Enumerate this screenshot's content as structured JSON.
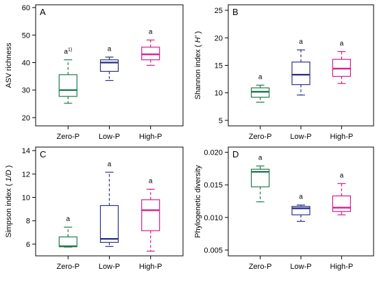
{
  "colors": {
    "Zero-P": "#1f7a4d",
    "Low-P": "#2b2f86",
    "High-P": "#d51b8a"
  },
  "chart_data": [
    {
      "type": "box",
      "panel_label": "A",
      "ylabel": "ASV richness",
      "ylabel_parts": [
        {
          "text": "ASV richness",
          "italic": false
        }
      ],
      "categories": [
        "Zero-P",
        "Low-P",
        "High-P"
      ],
      "ylim": [
        17,
        61
      ],
      "yticks": [
        20,
        30,
        40,
        50,
        60
      ],
      "ytick_labels": [
        "20",
        "30",
        "40",
        "50",
        "60"
      ],
      "boxes": [
        {
          "category": "Zero-P",
          "min": 25.2,
          "q1": 27.7,
          "median": 30.0,
          "q3": 35.6,
          "max": 41.0,
          "sig": "a",
          "sig_sup": "1)"
        },
        {
          "category": "Low-P",
          "min": 33.5,
          "q1": 36.8,
          "median": 40.0,
          "q3": 41.0,
          "max": 42.0,
          "sig": "a",
          "sig_sup": ""
        },
        {
          "category": "High-P",
          "min": 39.0,
          "q1": 41.0,
          "median": 43.0,
          "q3": 45.6,
          "max": 48.2,
          "sig": "a",
          "sig_sup": ""
        }
      ]
    },
    {
      "type": "box",
      "panel_label": "B",
      "ylabel": "Shannon index ( H' )",
      "ylabel_parts": [
        {
          "text": "Shannon index ( ",
          "italic": false
        },
        {
          "text": "H'",
          "italic": true
        },
        {
          "text": " )",
          "italic": false
        }
      ],
      "categories": [
        "Zero-P",
        "Low-P",
        "High-P"
      ],
      "ylim": [
        4,
        26
      ],
      "yticks": [
        5,
        10,
        15,
        20,
        25
      ],
      "ytick_labels": [
        "5",
        "10",
        "15",
        "20",
        "25"
      ],
      "boxes": [
        {
          "category": "Zero-P",
          "min": 8.3,
          "q1": 9.2,
          "median": 10.2,
          "q3": 10.9,
          "max": 11.4,
          "sig": "a",
          "sig_sup": ""
        },
        {
          "category": "Low-P",
          "min": 9.6,
          "q1": 11.5,
          "median": 13.3,
          "q3": 15.6,
          "max": 17.8,
          "sig": "a",
          "sig_sup": ""
        },
        {
          "category": "High-P",
          "min": 11.7,
          "q1": 13.0,
          "median": 14.4,
          "q3": 16.1,
          "max": 17.5,
          "sig": "a",
          "sig_sup": ""
        }
      ]
    },
    {
      "type": "box",
      "panel_label": "C",
      "ylabel": "Simpson index ( 1/D )",
      "ylabel_parts": [
        {
          "text": "Simpson index ( ",
          "italic": false
        },
        {
          "text": "1/D",
          "italic": true
        },
        {
          "text": " )",
          "italic": false
        }
      ],
      "categories": [
        "Zero-P",
        "Low-P",
        "High-P"
      ],
      "ylim": [
        5.0,
        14.3
      ],
      "yticks": [
        6,
        8,
        10,
        12,
        14
      ],
      "ytick_labels": [
        "6",
        "8",
        "10",
        "12",
        "14"
      ],
      "boxes": [
        {
          "category": "Zero-P",
          "min": 5.75,
          "q1": 5.78,
          "median": 5.82,
          "q3": 6.62,
          "max": 7.45,
          "sig": "a",
          "sig_sup": ""
        },
        {
          "category": "Low-P",
          "min": 5.8,
          "q1": 6.15,
          "median": 6.45,
          "q3": 9.3,
          "max": 12.15,
          "sig": "a",
          "sig_sup": ""
        },
        {
          "category": "High-P",
          "min": 5.4,
          "q1": 7.15,
          "median": 8.9,
          "q3": 9.8,
          "max": 10.7,
          "sig": "a",
          "sig_sup": ""
        }
      ]
    },
    {
      "type": "box",
      "panel_label": "D",
      "ylabel": "Phylogenetic diversity",
      "ylabel_parts": [
        {
          "text": "Phylogenetic diversity",
          "italic": false
        }
      ],
      "categories": [
        "Zero-P",
        "Low-P",
        "High-P"
      ],
      "ylim": [
        0.0041,
        0.0208
      ],
      "yticks": [
        0.005,
        0.01,
        0.015,
        0.02
      ],
      "ytick_labels": [
        "0.005",
        "0.010",
        "0.015",
        "0.020"
      ],
      "boxes": [
        {
          "category": "Zero-P",
          "min": 0.0124,
          "q1": 0.0147,
          "median": 0.017,
          "q3": 0.0174,
          "max": 0.0179,
          "sig": "a",
          "sig_sup": ""
        },
        {
          "category": "Low-P",
          "min": 0.0094,
          "q1": 0.0104,
          "median": 0.0114,
          "q3": 0.0117,
          "max": 0.0119,
          "sig": "a",
          "sig_sup": ""
        },
        {
          "category": "High-P",
          "min": 0.0104,
          "q1": 0.0109,
          "median": 0.0115,
          "q3": 0.0133,
          "max": 0.0152,
          "sig": "a",
          "sig_sup": ""
        }
      ]
    }
  ]
}
